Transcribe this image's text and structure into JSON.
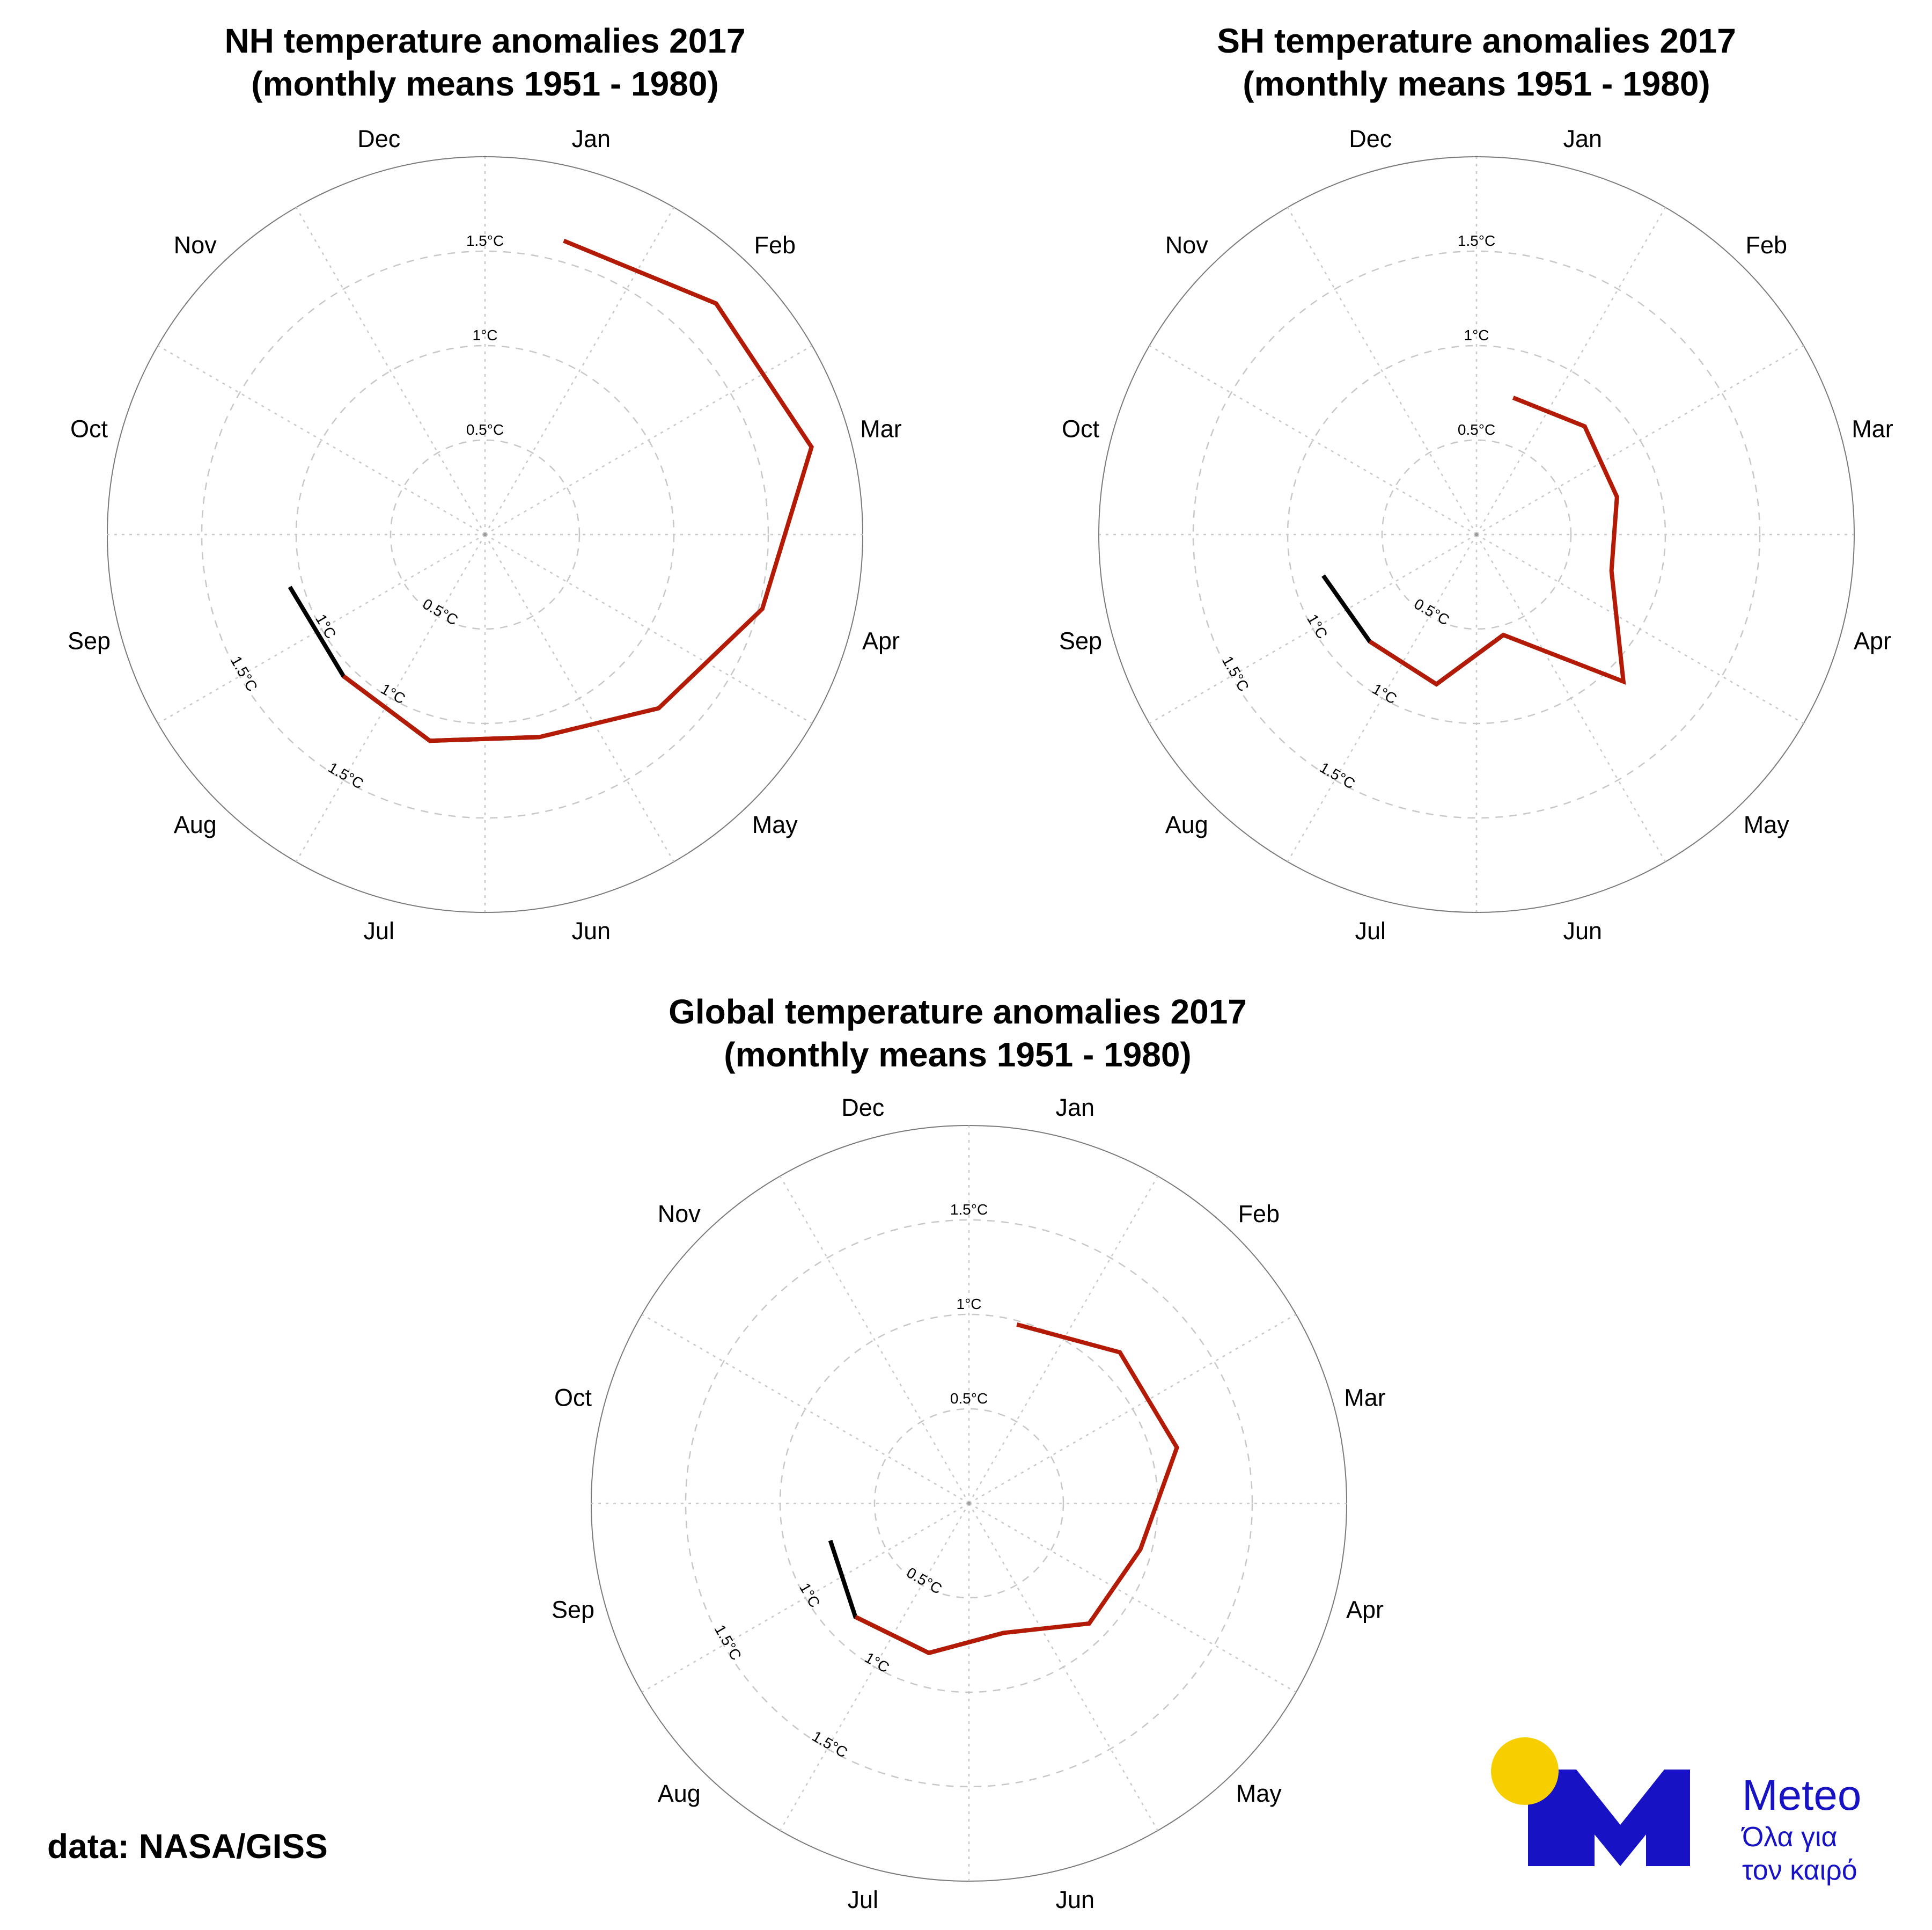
{
  "credit": "data: NASA/GISS",
  "logo": {
    "name": "Meteo",
    "tagline_line1": "Όλα για",
    "tagline_line2": "τον καιρό",
    "colors": {
      "brand": "#1712c4",
      "sun": "#f7cf00"
    }
  },
  "colors": {
    "current_year": "#b31b06",
    "previous_year": "#000000",
    "grid": "#c8c8c8",
    "outline": "#7a7a7a"
  },
  "chart_data": [
    {
      "type": "polar-line",
      "title_line1": "NH temperature anomalies 2017",
      "title_line2": "(monthly means 1951 - 1980)",
      "months": [
        "Jan",
        "Feb",
        "Mar",
        "Apr",
        "May",
        "Jun",
        "Jul",
        "Aug",
        "Sep",
        "Oct",
        "Nov",
        "Dec"
      ],
      "rlim": [
        0,
        2.0
      ],
      "ring_values": [
        0.5,
        1.0,
        1.5
      ],
      "ring_labels": [
        "0.5°C",
        "1°C",
        "1.5°C"
      ],
      "label_set_high": [
        "0.5°C",
        "1°C",
        "1.5°C"
      ],
      "label_set_low": [
        "0.5°C",
        "1°C",
        "1.5°C"
      ],
      "label_set_left": [
        "1°C",
        "1.5°C"
      ],
      "series": [
        {
          "color_key": "current_year",
          "months": [
            "Jan",
            "Feb",
            "Mar",
            "Apr",
            "May",
            "Jun",
            "Jul",
            "Aug"
          ],
          "values": [
            1.61,
            1.73,
            1.79,
            1.52,
            1.3,
            1.11,
            1.13,
            1.06
          ]
        },
        {
          "color_key": "previous_year",
          "months": [
            "Jun",
            "Jul",
            "Aug",
            "Sep"
          ],
          "values": [
            1.11,
            1.13,
            1.06,
            1.07
          ]
        }
      ]
    },
    {
      "type": "polar-line",
      "title_line1": "SH temperature anomalies 2017",
      "title_line2": "(monthly means 1951 - 1980)",
      "months": [
        "Jan",
        "Feb",
        "Mar",
        "Apr",
        "May",
        "Jun",
        "Jul",
        "Aug",
        "Sep",
        "Oct",
        "Nov",
        "Dec"
      ],
      "rlim": [
        0,
        2.0
      ],
      "ring_values": [
        0.5,
        1.0,
        1.5
      ],
      "ring_labels": [
        "0.5°C",
        "1°C",
        "1.5°C"
      ],
      "label_set_high": [
        "0.5°C",
        "1°C",
        "1.5°C"
      ],
      "label_set_low": [
        "0.5°C",
        "1°C",
        "1.5°C"
      ],
      "label_set_left": [
        "1°C",
        "1.5°C"
      ],
      "series": [
        {
          "color_key": "current_year",
          "months": [
            "Jan",
            "Feb",
            "Mar",
            "Apr",
            "May",
            "Jun",
            "Jul",
            "Aug"
          ],
          "values": [
            0.75,
            0.81,
            0.77,
            0.74,
            1.1,
            0.55,
            0.82,
            0.8
          ]
        },
        {
          "color_key": "previous_year",
          "months": [
            "Jun",
            "Jul",
            "Aug",
            "Sep"
          ],
          "values": [
            0.55,
            0.82,
            0.8,
            0.84
          ]
        }
      ]
    },
    {
      "type": "polar-line",
      "title_line1": "Global temperature anomalies 2017",
      "title_line2": "(monthly means 1951 - 1980)",
      "months": [
        "Jan",
        "Feb",
        "Mar",
        "Apr",
        "May",
        "Jun",
        "Jul",
        "Aug",
        "Sep",
        "Oct",
        "Nov",
        "Dec"
      ],
      "rlim": [
        0,
        2.0
      ],
      "ring_values": [
        0.5,
        1.0,
        1.5
      ],
      "ring_labels": [
        "0.5°C",
        "1°C",
        "1.5°C"
      ],
      "label_set_high": [
        "0.5°C",
        "1°C",
        "1.5°C"
      ],
      "label_set_low": [
        "0.5°C",
        "1°C",
        "1.5°C"
      ],
      "label_set_left": [
        "1°C",
        "1.5°C"
      ],
      "series": [
        {
          "color_key": "current_year",
          "months": [
            "Jan",
            "Feb",
            "Mar",
            "Apr",
            "May",
            "Jun",
            "Jul",
            "Aug"
          ],
          "values": [
            0.98,
            1.13,
            1.14,
            0.94,
            0.9,
            0.71,
            0.82,
            0.85
          ]
        },
        {
          "color_key": "previous_year",
          "months": [
            "Jun",
            "Jul",
            "Aug",
            "Sep"
          ],
          "values": [
            0.71,
            0.82,
            0.85,
            0.76
          ]
        }
      ]
    }
  ]
}
